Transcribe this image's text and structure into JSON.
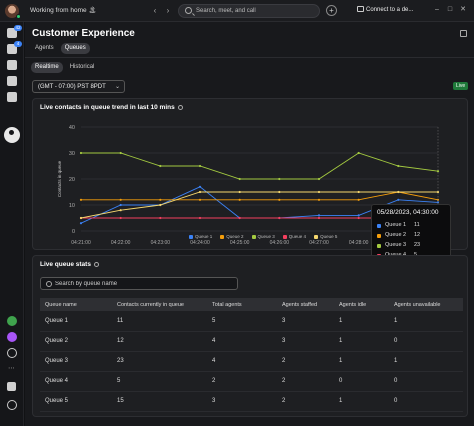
{
  "titlebar": {
    "status": "Working from home 🏝",
    "search_placeholder": "Search, meet, and call",
    "connect_label": "Connect to a de...",
    "back": "‹",
    "forward": "›",
    "plus": "+",
    "minimize": "–",
    "maximize": "□",
    "close": "✕"
  },
  "rail": {
    "badges": [
      "42",
      "4"
    ]
  },
  "page": {
    "title": "Customer Experience",
    "tabs": [
      {
        "label": "Agents",
        "active": false
      },
      {
        "label": "Queues",
        "active": true
      }
    ],
    "subtabs": [
      {
        "label": "Realtime",
        "active": true
      },
      {
        "label": "Historical",
        "active": false
      }
    ],
    "timezone": "(GMT - 07:00) PST 8PDT",
    "live_badge": "Live"
  },
  "trend_card": {
    "title": "Live contacts in queue trend in last 10 mins"
  },
  "chart_data": {
    "type": "line",
    "title": "Live contacts in queue trend in last 10 mins",
    "ylabel": "Contacts in queue",
    "xlabel": "",
    "ylim": [
      0,
      40
    ],
    "y_ticks": [
      0,
      10,
      20,
      30,
      40
    ],
    "x": [
      "04:21:00",
      "04:22:00",
      "04:23:00",
      "04:24:00",
      "04:25:00",
      "04:26:00",
      "04:27:00",
      "04:28:00",
      "04:29:00",
      "04:30:00"
    ],
    "grid": true,
    "legend": "bottom",
    "series": [
      {
        "name": "Queue 1",
        "color": "#3b82f6",
        "values": [
          3,
          10,
          10,
          17,
          5,
          5,
          6,
          6,
          12,
          11
        ]
      },
      {
        "name": "Queue 2",
        "color": "#f59e0b",
        "values": [
          12,
          12,
          12,
          12,
          12,
          12,
          12,
          12,
          15,
          12
        ]
      },
      {
        "name": "Queue 3",
        "color": "#a3c940",
        "values": [
          30,
          30,
          25,
          25,
          20,
          20,
          20,
          30,
          25,
          23
        ]
      },
      {
        "name": "Queue 4",
        "color": "#f43f5e",
        "values": [
          5,
          5,
          5,
          5,
          5,
          5,
          5,
          5,
          5,
          5
        ]
      },
      {
        "name": "Queue 5",
        "color": "#f5d76e",
        "values": [
          5,
          8,
          10,
          15,
          15,
          15,
          15,
          15,
          15,
          15
        ]
      }
    ]
  },
  "tooltip": {
    "title": "05/28/2023, 04:30:00",
    "rows": [
      {
        "name": "Queue 1",
        "value": "11",
        "color": "#3b82f6"
      },
      {
        "name": "Queue 2",
        "value": "12",
        "color": "#f59e0b"
      },
      {
        "name": "Queue 3",
        "value": "23",
        "color": "#a3c940"
      },
      {
        "name": "Queue 4",
        "value": "5",
        "color": "#f43f5e"
      },
      {
        "name": "Queue 5",
        "value": "15",
        "color": "#f5d76e"
      }
    ]
  },
  "stats_card": {
    "title": "Live queue stats",
    "search_placeholder": "Search by queue name",
    "columns": [
      "Queue name",
      "Contacts currently in queue",
      "Total agents",
      "Agents staffed",
      "Agents idle",
      "Agents unavailable"
    ],
    "rows": [
      [
        "Queue 1",
        "11",
        "5",
        "3",
        "1",
        "1"
      ],
      [
        "Queue 2",
        "12",
        "4",
        "3",
        "1",
        "0"
      ],
      [
        "Queue 3",
        "23",
        "4",
        "2",
        "1",
        "1"
      ],
      [
        "Queue 4",
        "5",
        "2",
        "2",
        "0",
        "0"
      ],
      [
        "Queue 5",
        "15",
        "3",
        "2",
        "1",
        "0"
      ]
    ]
  }
}
